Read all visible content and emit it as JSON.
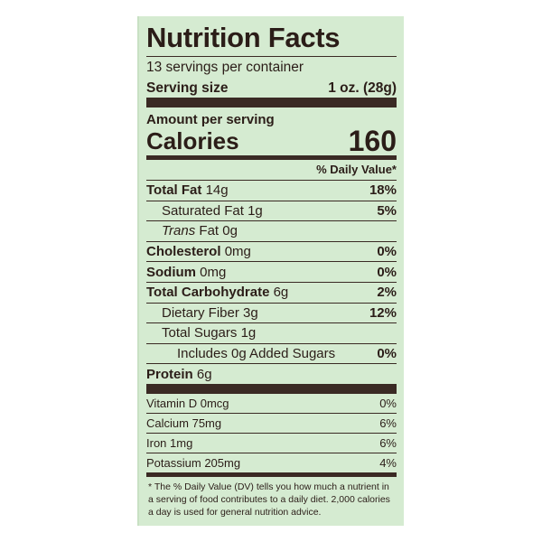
{
  "header": {
    "title": "Nutrition Facts",
    "servings": "13 servings per container",
    "serving_size_label": "Serving size",
    "serving_size_value": "1 oz. (28g)"
  },
  "calories": {
    "amount_label": "Amount per serving",
    "label": "Calories",
    "value": "160"
  },
  "dv_header": "% Daily Value*",
  "nutrients": [
    {
      "name": "Total Fat",
      "amount": "14g",
      "dv": "18%",
      "bold": true,
      "indent": 0
    },
    {
      "name": "Saturated Fat",
      "amount": "1g",
      "dv": "5%",
      "bold": false,
      "indent": 1
    },
    {
      "prefix": "Trans",
      "name": "Fat",
      "amount": "0g",
      "bold": false,
      "indent": 1
    },
    {
      "name": "Cholesterol",
      "amount": "0mg",
      "dv": "0%",
      "bold": true,
      "indent": 0
    },
    {
      "name": "Sodium",
      "amount": "0mg",
      "dv": "0%",
      "bold": true,
      "indent": 0
    },
    {
      "name": "Total Carbohydrate",
      "amount": "6g",
      "dv": "2%",
      "bold": true,
      "indent": 0
    },
    {
      "name": "Dietary Fiber",
      "amount": "3g",
      "dv": "12%",
      "bold": false,
      "indent": 1
    },
    {
      "name": "Total Sugars",
      "amount": "1g",
      "bold": false,
      "indent": 1
    },
    {
      "name": "Includes 0g Added Sugars",
      "dv": "0%",
      "bold": false,
      "indent": 2
    },
    {
      "name": "Protein",
      "amount": "6g",
      "bold": true,
      "indent": 0
    }
  ],
  "vitamins": [
    {
      "name": "Vitamin D",
      "amount": "0mcg",
      "dv": "0%"
    },
    {
      "name": "Calcium",
      "amount": "75mg",
      "dv": "6%"
    },
    {
      "name": "Iron",
      "amount": "1mg",
      "dv": "6%"
    },
    {
      "name": "Potassium",
      "amount": "205mg",
      "dv": "4%"
    }
  ],
  "footnote": "* The % Daily Value (DV) tells you how much a nutrient in a serving of food contributes to a daily diet. 2,000 calories a day is used for general nutrition advice."
}
